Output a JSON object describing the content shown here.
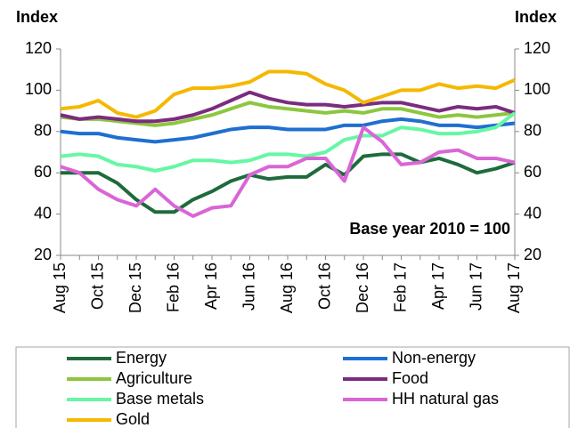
{
  "chart_data": {
    "type": "line",
    "ylabel": "Index",
    "y2label": "Index",
    "annotation": "Base year 2010 = 100",
    "categories": [
      "Aug 15",
      null,
      "Oct 15",
      null,
      "Dec 15",
      null,
      "Feb 16",
      null,
      "Apr 16",
      null,
      "Jun 16",
      null,
      "Aug 16",
      null,
      "Oct 16",
      null,
      "Dec 16",
      null,
      "Feb 17",
      null,
      "Apr 17",
      null,
      "Jun 17",
      null,
      "Aug 17"
    ],
    "ylim": [
      20,
      120
    ],
    "yticks": [
      20,
      40,
      60,
      80,
      100,
      120
    ],
    "y2lim": [
      20,
      120
    ],
    "y2ticks": [
      20,
      40,
      60,
      80,
      100,
      120
    ],
    "grid": false,
    "series": [
      {
        "name": "Energy",
        "color": "#1e6b3c",
        "values": [
          60,
          60,
          60,
          55,
          47,
          41,
          41,
          47,
          51,
          56,
          59,
          57,
          58,
          58,
          64,
          59,
          68,
          69,
          69,
          65,
          67,
          64,
          60,
          62,
          65
        ]
      },
      {
        "name": "Non-energy",
        "color": "#1f6fd0",
        "values": [
          80,
          79,
          79,
          77,
          76,
          75,
          76,
          77,
          79,
          81,
          82,
          82,
          81,
          81,
          81,
          83,
          83,
          85,
          86,
          85,
          83,
          83,
          82,
          83,
          84
        ]
      },
      {
        "name": "Agriculture",
        "color": "#8dc63f",
        "values": [
          87,
          86,
          86,
          85,
          84,
          83,
          84,
          86,
          88,
          91,
          94,
          92,
          91,
          90,
          89,
          90,
          89,
          91,
          91,
          89,
          87,
          88,
          87,
          88,
          89
        ]
      },
      {
        "name": "Food",
        "color": "#7b2c7e",
        "values": [
          88,
          86,
          87,
          86,
          85,
          85,
          86,
          88,
          91,
          95,
          99,
          96,
          94,
          93,
          93,
          92,
          93,
          94,
          94,
          92,
          90,
          92,
          91,
          92,
          89
        ]
      },
      {
        "name": "Base metals",
        "color": "#66f7a4",
        "values": [
          68,
          69,
          68,
          64,
          63,
          61,
          63,
          66,
          66,
          65,
          66,
          69,
          69,
          68,
          70,
          76,
          78,
          78,
          82,
          81,
          79,
          79,
          80,
          82,
          89
        ]
      },
      {
        "name": "HH natural gas",
        "color": "#d966d6",
        "values": [
          63,
          60,
          52,
          47,
          44,
          52,
          44,
          39,
          43,
          44,
          59,
          63,
          63,
          67,
          67,
          56,
          82,
          75,
          64,
          65,
          70,
          71,
          67,
          67,
          65
        ]
      },
      {
        "name": "Gold",
        "color": "#f5b800",
        "values": [
          91,
          92,
          95,
          89,
          87,
          90,
          98,
          101,
          101,
          102,
          104,
          109,
          109,
          108,
          103,
          100,
          94,
          97,
          100,
          100,
          103,
          101,
          102,
          101,
          105
        ]
      }
    ]
  }
}
